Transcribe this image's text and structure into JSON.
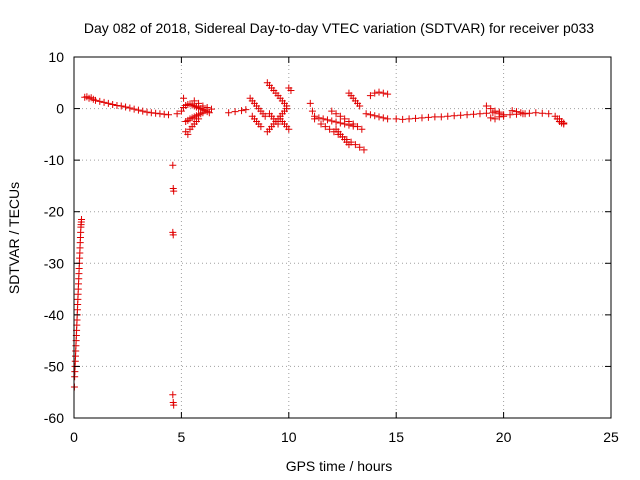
{
  "chart_data": {
    "type": "scatter",
    "title": "Day 082 of 2018, Sidereal Day-to-day VTEC variation (SDTVAR) for receiver p033",
    "xlabel": "GPS time / hours",
    "ylabel": "SDTVAR / TECUs",
    "xlim": [
      0,
      25
    ],
    "ylim": [
      -60,
      10
    ],
    "x_ticks": [
      0,
      5,
      10,
      15,
      20,
      25
    ],
    "y_ticks": [
      10,
      0,
      -10,
      -20,
      -30,
      -40,
      -50,
      -60
    ],
    "x_tick_labels": [
      "0",
      "5",
      "10",
      "15",
      "20",
      "25"
    ],
    "y_tick_labels": [
      "10",
      "0",
      "-10",
      "-20",
      "-30",
      "-40",
      "-50",
      "-60"
    ],
    "grid": true,
    "marker": "+",
    "series": [
      {
        "name": "SDTVAR",
        "color": "#e00000",
        "x": [
          0.02,
          0.03,
          0.04,
          0.05,
          0.06,
          0.07,
          0.08,
          0.09,
          0.1,
          0.11,
          0.12,
          0.13,
          0.14,
          0.15,
          0.16,
          0.17,
          0.18,
          0.19,
          0.2,
          0.21,
          0.22,
          0.23,
          0.24,
          0.25,
          0.26,
          0.27,
          0.28,
          0.29,
          0.3,
          0.31,
          0.32,
          0.33,
          0.34,
          0.35,
          4.6,
          4.62,
          4.64,
          4.6,
          4.62,
          4.6,
          4.62,
          4.64,
          0.5,
          0.6,
          0.7,
          0.8,
          0.9,
          1.0,
          1.2,
          1.4,
          1.6,
          1.8,
          2.0,
          2.2,
          2.4,
          2.6,
          2.8,
          3.0,
          3.2,
          3.4,
          3.6,
          3.8,
          4.0,
          4.2,
          4.4,
          4.8,
          5.0,
          5.1,
          5.2,
          5.3,
          5.4,
          5.5,
          5.6,
          5.7,
          5.8,
          5.9,
          6.0,
          6.1,
          6.2,
          6.3,
          5.2,
          5.3,
          5.4,
          5.5,
          5.6,
          5.7,
          5.8,
          5.9,
          6.0,
          5.4,
          5.5,
          5.6,
          5.7,
          5.8,
          5.6,
          5.8,
          6.0,
          6.2,
          6.4,
          5.1,
          5.2,
          5.3,
          7.2,
          7.5,
          7.8,
          8.0,
          8.2,
          8.3,
          8.4,
          8.5,
          8.6,
          8.7,
          8.8,
          8.9,
          8.3,
          8.4,
          8.5,
          8.6,
          8.7,
          9.0,
          9.1,
          9.2,
          9.3,
          9.4,
          9.5,
          9.6,
          9.7,
          9.8,
          9.9,
          9.0,
          9.1,
          9.2,
          9.3,
          9.4,
          9.5,
          9.6,
          9.7,
          9.8,
          9.9,
          9.1,
          9.2,
          9.3,
          9.4,
          9.5,
          9.6,
          9.7,
          9.8,
          9.9,
          10.0,
          10.0,
          10.1,
          11.0,
          11.1,
          11.2,
          11.2,
          11.4,
          11.6,
          11.8,
          12.0,
          12.2,
          12.4,
          12.6,
          12.8,
          13.0,
          11.5,
          11.7,
          11.9,
          12.1,
          12.3,
          12.5,
          12.7,
          12.9,
          13.1,
          13.3,
          13.5,
          12.0,
          12.2,
          12.4,
          12.6,
          12.8,
          13.0,
          13.2,
          13.4,
          12.2,
          12.3,
          12.4,
          12.5,
          12.6,
          12.7,
          12.8,
          12.8,
          12.9,
          13.0,
          13.1,
          13.2,
          13.3,
          13.6,
          13.8,
          14.0,
          14.2,
          14.4,
          14.6,
          13.8,
          14.0,
          14.2,
          14.4,
          14.6,
          15.0,
          15.3,
          15.6,
          15.9,
          16.2,
          16.5,
          16.8,
          17.1,
          17.4,
          17.7,
          18.0,
          18.3,
          18.6,
          18.9,
          19.2,
          19.5,
          19.8,
          19.2,
          19.4,
          19.6,
          19.8,
          20.0,
          19.4,
          19.6,
          19.8,
          20.0,
          20.3,
          20.6,
          20.9,
          21.2,
          21.5,
          21.8,
          22.1,
          22.4,
          22.6,
          22.7,
          22.8,
          20.4,
          20.6,
          20.8,
          21.0,
          22.5,
          22.6,
          22.7,
          22.8
        ],
        "y": [
          -54,
          -52,
          -51,
          -50,
          -49,
          -48,
          -47,
          -46,
          -45,
          -44,
          -43,
          -42,
          -41,
          -40,
          -39,
          -38,
          -37,
          -36,
          -35,
          -34,
          -33,
          -32,
          -31,
          -30,
          -29,
          -28,
          -27,
          -26,
          -25,
          -24,
          -23,
          -22.5,
          -22,
          -21.5,
          -11,
          -15.5,
          -16,
          -24,
          -24.5,
          -55.5,
          -57,
          -57.5,
          2.2,
          2.3,
          2.0,
          2.1,
          1.8,
          1.6,
          1.4,
          1.2,
          1.0,
          0.8,
          0.6,
          0.5,
          0.3,
          0.1,
          -0.1,
          -0.3,
          -0.5,
          -0.7,
          -0.8,
          -0.9,
          -1.0,
          -1.1,
          -1.2,
          -1.0,
          -0.5,
          0.2,
          0.6,
          0.8,
          0.9,
          0.7,
          0.5,
          0.3,
          0.1,
          0,
          -0.2,
          -0.4,
          -0.6,
          -0.8,
          -2.5,
          -2.3,
          -2.0,
          -1.8,
          -1.6,
          -1.4,
          -1.2,
          -1.0,
          -0.8,
          -4.0,
          -3.5,
          -3.0,
          -2.5,
          -2.0,
          1.5,
          1.0,
          0.5,
          0.2,
          -0.1,
          2.0,
          -4.5,
          -5.0,
          -0.8,
          -0.6,
          -0.4,
          -0.2,
          2.0,
          1.5,
          1.0,
          0.5,
          0,
          -0.5,
          -1.0,
          -1.5,
          -1.5,
          -2.0,
          -2.5,
          -3.0,
          -3.5,
          5.0,
          4.5,
          4.0,
          3.5,
          3.0,
          2.5,
          2.0,
          1.5,
          1.0,
          0.5,
          -4.5,
          -4.0,
          -3.5,
          -3.0,
          -2.5,
          -2.0,
          -1.5,
          -1.0,
          -0.5,
          0,
          -1.0,
          -1.5,
          -2.0,
          -2.5,
          -3.0,
          -2.0,
          -2.5,
          -3.0,
          -3.5,
          -4.0,
          4.0,
          3.5,
          1.0,
          -0.5,
          -2.0,
          -1.5,
          -1.8,
          -2.0,
          -2.2,
          -2.4,
          -2.6,
          -2.8,
          -3.0,
          -3.2,
          -3.4,
          -3.0,
          -3.5,
          -4.0,
          -4.5,
          -5.0,
          -5.5,
          -6.0,
          -6.5,
          -7.0,
          -7.5,
          -8.0,
          -0.5,
          -1.0,
          -1.5,
          -2.0,
          -2.5,
          -3.0,
          -3.5,
          -4.0,
          -4.0,
          -4.5,
          -5.0,
          -5.5,
          -6.0,
          -6.5,
          -7.0,
          3.0,
          2.5,
          2.0,
          1.5,
          1.0,
          0.5,
          -1.0,
          -1.2,
          -1.4,
          -1.6,
          -1.8,
          -2.0,
          2.5,
          3.0,
          3.2,
          3.0,
          2.8,
          -2.0,
          -2.1,
          -2.0,
          -1.9,
          -1.8,
          -1.7,
          -1.6,
          -1.6,
          -1.5,
          -1.4,
          -1.3,
          -1.2,
          -1.1,
          -1.0,
          -0.9,
          -0.8,
          -0.7,
          0.5,
          0,
          -0.5,
          -1.0,
          -1.5,
          -1.8,
          -2.0,
          -1.6,
          -1.2,
          -1.2,
          -1.1,
          -1.0,
          -0.9,
          -0.8,
          -0.9,
          -1.0,
          -1.5,
          -2.0,
          -2.5,
          -2.8,
          -0.4,
          -0.6,
          -0.8,
          -1.0,
          -2.0,
          -2.5,
          -2.8,
          -3.0
        ]
      }
    ]
  }
}
